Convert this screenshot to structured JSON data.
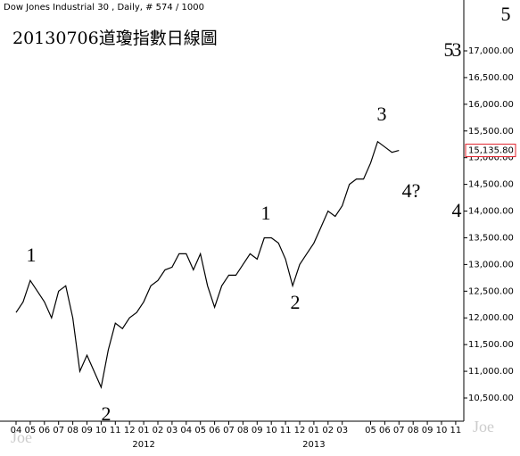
{
  "chart_data": {
    "type": "line",
    "header": "Dow Jones Industrial 30 , Daily, # 574 / 1000",
    "title": "20130706道瓊指數日線圖",
    "categories": [
      "04",
      null,
      "05",
      null,
      "06",
      null,
      "07",
      null,
      "08",
      null,
      "09",
      null,
      "10",
      null,
      "11",
      null,
      "12",
      null,
      "01",
      null,
      "02",
      null,
      "03",
      null,
      "04",
      null,
      "05",
      null,
      "06",
      null,
      "07",
      null,
      "08",
      null,
      "09",
      null,
      "10",
      null,
      "11",
      null,
      "12",
      null,
      "01",
      null,
      "02",
      null,
      "03",
      null,
      null,
      null,
      "05",
      null,
      "06",
      null,
      "07",
      null,
      "08",
      null,
      "09",
      null,
      "10",
      null,
      "11",
      null
    ],
    "series": [
      {
        "name": "Dow Jones Industrial 30",
        "color": "#000000",
        "values": [
          12100,
          12300,
          12700,
          12500,
          12300,
          12000,
          12500,
          12600,
          12000,
          11000,
          11300,
          11000,
          10700,
          11400,
          11900,
          11800,
          12000,
          12100,
          12300,
          12600,
          12700,
          12900,
          12950,
          13200,
          13200,
          12900,
          13200,
          12600,
          12200,
          12600,
          12800,
          12800,
          13000,
          13200,
          13100,
          13500,
          13500,
          13400,
          13100,
          12600,
          13000,
          13200,
          13400,
          13700,
          14000,
          13900,
          14100,
          14500,
          14600,
          14600,
          14900,
          15300,
          15200,
          15100,
          15135.8,
          null,
          null,
          null,
          null,
          null,
          null,
          null,
          null,
          null
        ]
      }
    ],
    "years": [
      "2012",
      "2013"
    ],
    "last_price": {
      "value": 15135.8,
      "label": "15,135.80"
    },
    "ylim": [
      10250,
      17400
    ],
    "yticks": [
      {
        "value": 10500,
        "label": "10,500.00"
      },
      {
        "value": 11000,
        "label": "11,000.00"
      },
      {
        "value": 11500,
        "label": "11,500.00"
      },
      {
        "value": 12000,
        "label": "12,000.00"
      },
      {
        "value": 12500,
        "label": "12,500.00"
      },
      {
        "value": 13000,
        "label": "13,000.00"
      },
      {
        "value": 13500,
        "label": "13,500.00"
      },
      {
        "value": 14000,
        "label": "14,000.00"
      },
      {
        "value": 14500,
        "label": "14,500.00"
      },
      {
        "value": 15000,
        "label": "15,000.00"
      },
      {
        "value": 15500,
        "label": "15,500.00"
      },
      {
        "value": 16000,
        "label": "16,000.00"
      },
      {
        "value": 16500,
        "label": "16,500.00"
      },
      {
        "value": 17000,
        "label": "17,000.00"
      }
    ],
    "annotations": [
      {
        "text": "1",
        "color": "#e0202a"
      },
      {
        "text": "2",
        "color": "#e0202a"
      },
      {
        "text": "1",
        "color": "#3cb04a"
      },
      {
        "text": "2",
        "color": "#3cb04a"
      },
      {
        "text": "3",
        "color": "#3cb04a"
      },
      {
        "text": "4?",
        "color": "#3cb04a"
      },
      {
        "text": "5",
        "color": "#3cb04a"
      },
      {
        "text": "3",
        "color": "#e0202a"
      },
      {
        "text": "4",
        "color": "#e0202a"
      },
      {
        "text": "5",
        "color": "#e0202a"
      }
    ],
    "watermark": "Joe"
  }
}
